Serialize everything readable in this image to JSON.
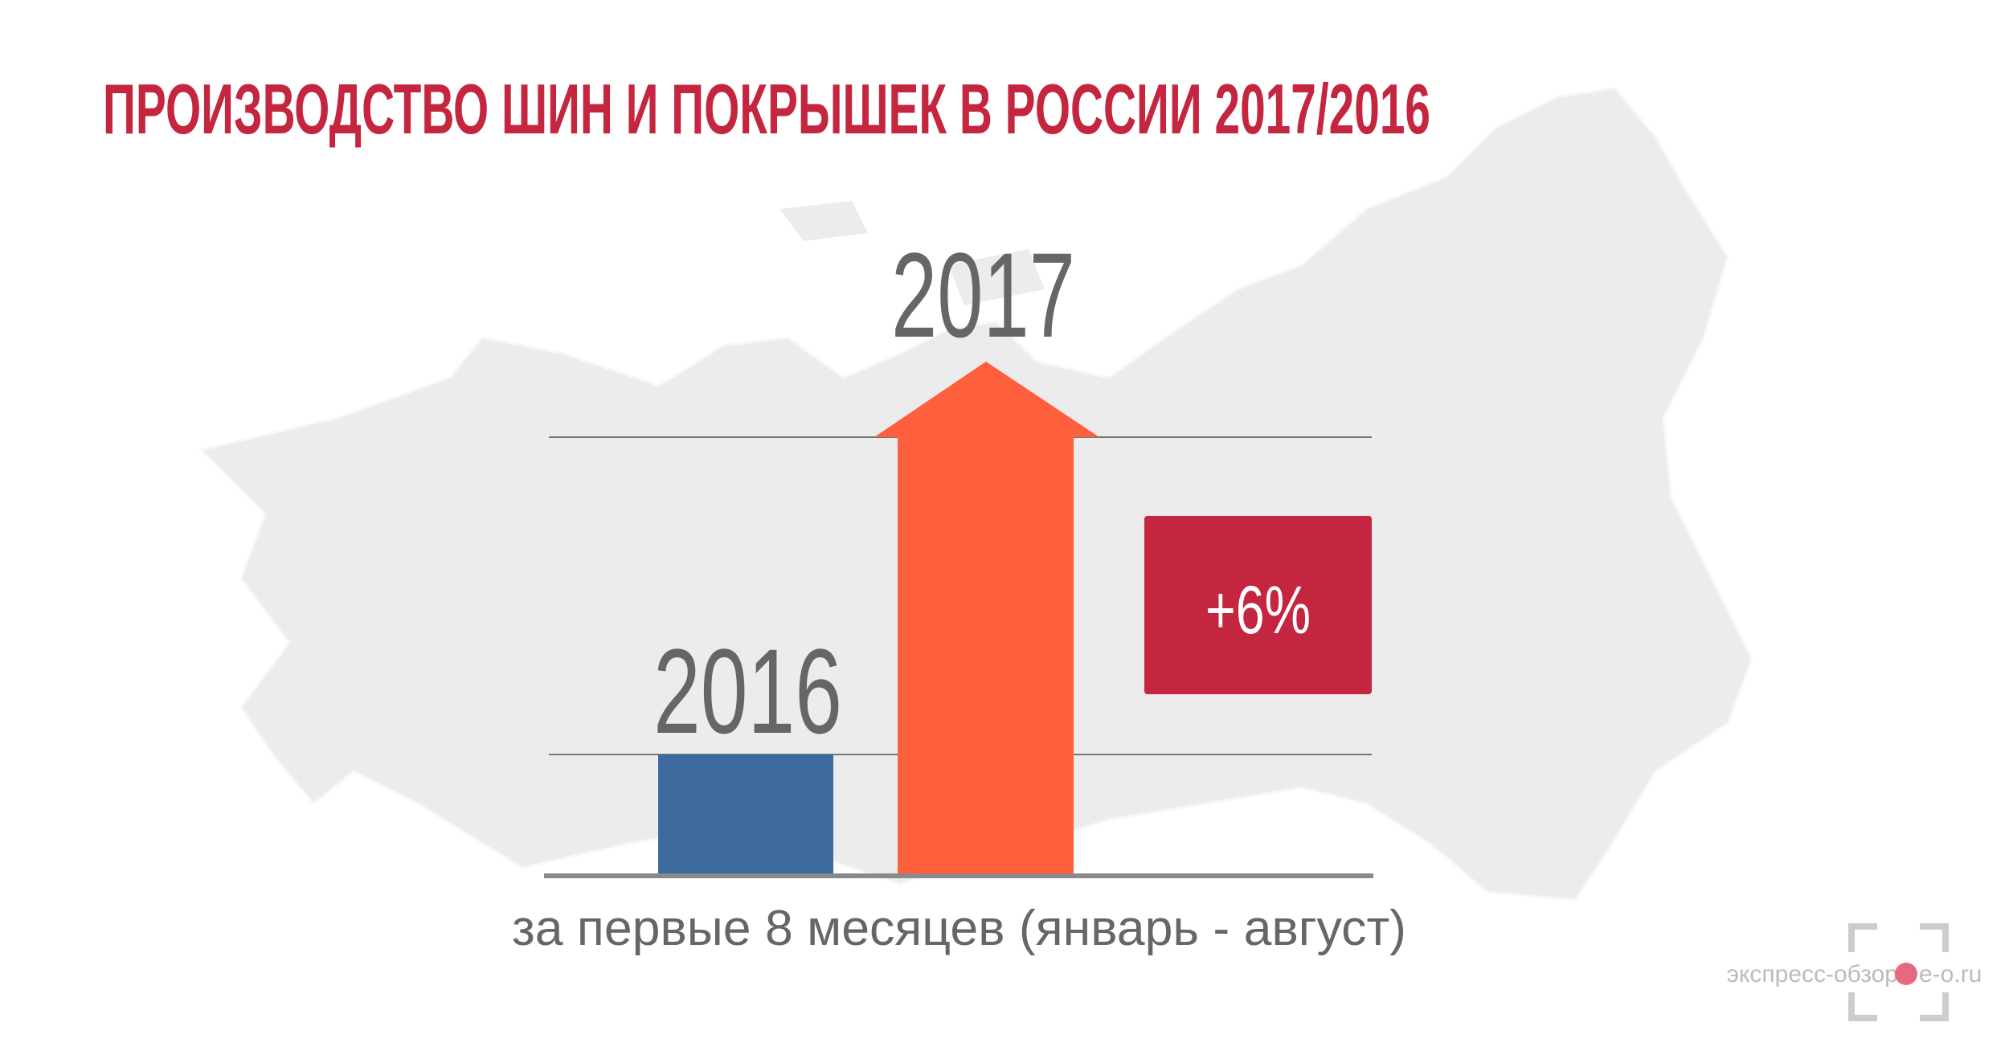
{
  "header": {
    "title": "ПРОИЗВОДСТВО ШИН И ПОКРЫШЕК В РОССИИ 2017/2016"
  },
  "labels": {
    "year_2017": "2017",
    "year_2016": "2016"
  },
  "badge": {
    "text": "+6%"
  },
  "caption": "за первые 8 месяцев (январь - август)",
  "watermark": {
    "left": "экспресс-обзор",
    "right": "e-o.ru"
  }
}
